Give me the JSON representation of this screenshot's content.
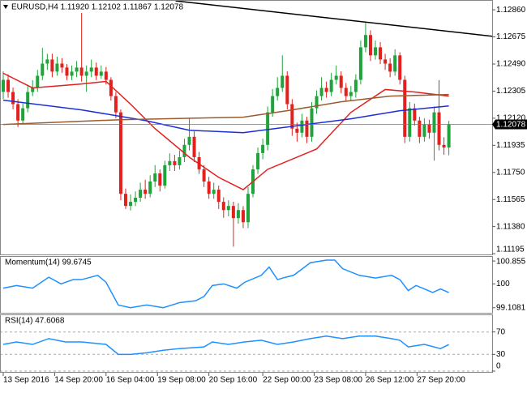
{
  "chart_data": {
    "type": "candlestick",
    "title": "EURUSD,H4  1.11920 1.12102 1.11867 1.12078",
    "open": [
      1.123,
      1.12382,
      1.12299,
      1.12216,
      1.12104,
      1.12188,
      1.12299,
      1.12327,
      1.1241,
      1.12493,
      1.12521,
      1.12438,
      1.12493,
      1.12466,
      1.1241,
      1.12438,
      1.12466,
      1.1241,
      1.12438,
      1.12466,
      1.1241,
      1.12438,
      1.12382,
      1.12271,
      1.1216,
      1.11604,
      1.11521,
      1.11549,
      1.11577,
      1.11632,
      1.11604,
      1.11688,
      1.11743,
      1.1166,
      1.11799,
      1.11827,
      1.11799,
      1.11854,
      1.11938,
      1.11993,
      1.11854,
      1.11771,
      1.11688,
      1.11604,
      1.11632,
      1.11549,
      1.11493,
      1.11521,
      1.11438,
      1.11493,
      1.1141,
      1.11604,
      1.11771,
      1.11882,
      1.11938,
      1.1216,
      1.12271,
      1.12327,
      1.1241,
      1.12216,
      1.12049,
      1.12021,
      1.12104,
      1.11993,
      1.12188,
      1.12271,
      1.12327,
      1.12299,
      1.12382,
      1.1241,
      1.12327,
      1.12271,
      1.12299,
      1.12382,
      1.12604,
      1.12688,
      1.12549,
      1.12604,
      1.12521,
      1.12493,
      1.12438,
      1.12549,
      1.12382,
      1.11993,
      1.12188,
      1.12104,
      1.11993,
      1.12077,
      1.12021,
      1.1216,
      1.11938,
      1.1192
    ],
    "high": [
      1.1244,
      1.1242,
      1.1233,
      1.1225,
      1.1222,
      1.1234,
      1.1238,
      1.1245,
      1.126,
      1.1256,
      1.1256,
      1.1254,
      1.1253,
      1.1249,
      1.1248,
      1.1251,
      1.12838,
      1.1248,
      1.1252,
      1.125,
      1.1248,
      1.1247,
      1.124,
      1.123,
      1.1218,
      1.1164,
      1.116,
      1.1162,
      1.1168,
      1.117,
      1.1173,
      1.118,
      1.1177,
      1.1183,
      1.1188,
      1.1187,
      1.119,
      1.1198,
      1.1212,
      1.1203,
      1.1189,
      1.118,
      1.1172,
      1.1168,
      1.1166,
      1.1158,
      1.1156,
      1.1155,
      1.1154,
      1.1152,
      1.1165,
      1.118,
      1.1192,
      1.1198,
      1.122,
      1.1232,
      1.124,
      1.12549,
      1.1244,
      1.1225,
      1.1209,
      1.1215,
      1.1213,
      1.1223,
      1.1231,
      1.124,
      1.1237,
      1.1243,
      1.1248,
      1.1244,
      1.1236,
      1.1234,
      1.1242,
      1.1265,
      1.12771,
      1.1272,
      1.1265,
      1.1264,
      1.1256,
      1.1253,
      1.1259,
      1.1257,
      1.1241,
      1.1223,
      1.1222,
      1.1213,
      1.1212,
      1.1211,
      1.122,
      1.1238,
      1.1199,
      1.12102
    ],
    "low": [
      1.1225,
      1.1226,
      1.1218,
      1.1206,
      1.1208,
      1.1216,
      1.1227,
      1.123,
      1.1238,
      1.1245,
      1.124,
      1.1241,
      1.1243,
      1.1238,
      1.1238,
      1.124,
      1.1237,
      1.123,
      1.124,
      1.1238,
      1.1239,
      1.1235,
      1.1224,
      1.1212,
      1.1156,
      1.115,
      1.1149,
      1.1152,
      1.1155,
      1.1157,
      1.1158,
      1.1165,
      1.1162,
      1.1164,
      1.1176,
      1.1176,
      1.1177,
      1.1182,
      1.119,
      1.1182,
      1.1174,
      1.1165,
      1.1157,
      1.1157,
      1.115,
      1.1144,
      1.1145,
      1.11243,
      1.114,
      1.1137,
      1.1137,
      1.1158,
      1.1174,
      1.1184,
      1.119,
      1.1213,
      1.1224,
      1.123,
      1.1218,
      1.12,
      1.1196,
      1.1199,
      1.1195,
      1.1196,
      1.1215,
      1.1224,
      1.1226,
      1.1227,
      1.1235,
      1.1229,
      1.1224,
      1.1224,
      1.1226,
      1.1235,
      1.1257,
      1.1251,
      1.1252,
      1.1249,
      1.1245,
      1.124,
      1.1241,
      1.1235,
      1.1195,
      1.1196,
      1.1207,
      1.1195,
      1.1196,
      1.1198,
      1.1183,
      1.119,
      1.1187,
      1.11867
    ],
    "close": [
      1.12382,
      1.12299,
      1.12216,
      1.12104,
      1.12188,
      1.12299,
      1.12327,
      1.1241,
      1.12493,
      1.12521,
      1.12438,
      1.12493,
      1.12466,
      1.1241,
      1.12438,
      1.12466,
      1.1241,
      1.12438,
      1.12466,
      1.1241,
      1.12438,
      1.12382,
      1.12271,
      1.1216,
      1.11604,
      1.11521,
      1.11549,
      1.11577,
      1.11632,
      1.11604,
      1.11688,
      1.11743,
      1.1166,
      1.11799,
      1.11827,
      1.11799,
      1.11854,
      1.11938,
      1.11993,
      1.11854,
      1.11771,
      1.11688,
      1.11604,
      1.11632,
      1.11549,
      1.11493,
      1.11521,
      1.11438,
      1.11493,
      1.1141,
      1.11604,
      1.11771,
      1.11882,
      1.11938,
      1.1216,
      1.12271,
      1.12327,
      1.1241,
      1.12216,
      1.12049,
      1.12021,
      1.12104,
      1.11993,
      1.12188,
      1.12271,
      1.12327,
      1.12299,
      1.12382,
      1.1241,
      1.12327,
      1.12271,
      1.12299,
      1.12382,
      1.12604,
      1.12688,
      1.12549,
      1.12604,
      1.12521,
      1.12493,
      1.12438,
      1.12549,
      1.12382,
      1.11993,
      1.12188,
      1.12104,
      1.11993,
      1.12077,
      1.12021,
      1.1216,
      1.11938,
      1.1192,
      1.12078
    ],
    "bull_color": "#1fa33a",
    "bear_color": "#e3201e",
    "xlim": [
      -0.66,
      99.84
    ],
    "xticks": [
      {
        "value": 0,
        "label": "13 Sep 2016"
      },
      {
        "value": 10.5,
        "label": "14 Sep 20:00"
      },
      {
        "value": 21,
        "label": "16 Sep 04:00"
      },
      {
        "value": 31.5,
        "label": "19 Sep 08:00"
      },
      {
        "value": 42,
        "label": "20 Sep 16:00"
      },
      {
        "value": 53,
        "label": "22 Sep 00:00"
      },
      {
        "value": 63.5,
        "label": "23 Sep 08:00"
      },
      {
        "value": 74,
        "label": "26 Sep 12:00"
      },
      {
        "value": 84.5,
        "label": "27 Sep 20:00"
      }
    ],
    "ylim": [
      1.1119,
      1.12927
    ],
    "yticks": [
      {
        "value": 1.1286,
        "label": "1.12860"
      },
      1.12675,
      {
        "value": 1.1249,
        "label": "1.12490"
      },
      1.12305,
      {
        "value": 1.1212,
        "label": "1.12120"
      },
      1.11935,
      {
        "value": 1.1175,
        "label": "1.11750"
      },
      1.11565,
      {
        "value": 1.1138,
        "label": "1.11380"
      },
      1.11195
    ],
    "last_price_label": "1.12078",
    "overlays": [
      {
        "color": "#e3201e",
        "x": [
          0,
          6,
          16,
          21,
          26,
          31,
          38,
          44,
          49,
          54,
          64,
          71,
          78,
          84,
          91
        ],
        "values": [
          1.12427,
          1.12327,
          1.12354,
          1.12371,
          1.12216,
          1.12049,
          1.11854,
          1.11716,
          1.11632,
          1.11771,
          1.1191,
          1.1216,
          1.12316,
          1.12299,
          1.12271
        ]
      },
      {
        "color": "#1c2fd6",
        "x": [
          0,
          16,
          29,
          38,
          49,
          58,
          71,
          81,
          91
        ],
        "values": [
          1.12243,
          1.12177,
          1.12104,
          1.12038,
          1.12021,
          1.1206,
          1.12116,
          1.12171,
          1.12204
        ]
      },
      {
        "color": "#9a5b2e",
        "x": [
          0,
          24,
          49,
          58,
          69,
          79,
          91
        ],
        "values": [
          1.12077,
          1.1211,
          1.12127,
          1.12171,
          1.12232,
          1.12271,
          1.12282
        ]
      },
      {
        "color": "#000000",
        "x": [
          35.2,
          100.5
        ],
        "values": [
          1.12921,
          1.12677
        ]
      }
    ],
    "momentum": {
      "type": "line",
      "title": "Momentum(14) 99.6745",
      "color": "#1e90ff",
      "x": [
        0,
        2.7,
        6,
        9.3,
        11.8,
        14.3,
        16,
        19.3,
        21,
        23.5,
        26,
        29.3,
        32.7,
        36,
        39.3,
        41,
        42.7,
        45,
        47.7,
        49.3,
        52.7,
        54.3,
        56,
        57.7,
        59.3,
        62.7,
        66,
        67.7,
        69.3,
        72.7,
        76,
        79.3,
        81,
        82.7,
        84.3,
        86,
        87.7,
        89.3,
        91
      ],
      "values": [
        99.84,
        99.94,
        99.84,
        100.25,
        100,
        100.16,
        100.16,
        100.32,
        100.06,
        99.21,
        99.11,
        99.21,
        99.11,
        99.3,
        99.37,
        99.53,
        99.94,
        100,
        99.84,
        100.06,
        100.32,
        100.63,
        100.16,
        100.25,
        100.32,
        100.79,
        100.89,
        100.89,
        100.57,
        100.32,
        100.22,
        100.32,
        100.16,
        99.75,
        99.94,
        99.81,
        99.68,
        99.81,
        99.6745
      ],
      "ylim": [
        98.92,
        101.01
      ],
      "yticks": [
        100.855,
        100,
        99.1081
      ],
      "grid": false
    },
    "rsi": {
      "type": "line",
      "title": "RSI(14) 47.6068",
      "color": "#1e90ff",
      "x": [
        0,
        2.7,
        6,
        9.3,
        12.7,
        16,
        21,
        23.5,
        26,
        29.3,
        32.7,
        36,
        41,
        42.7,
        46,
        49.3,
        52.7,
        56,
        59.3,
        62.7,
        66,
        69.3,
        72.7,
        76,
        79.3,
        81,
        82.7,
        86,
        89.3,
        91
      ],
      "values": [
        47.8,
        52.2,
        47.8,
        58.2,
        52.2,
        52.2,
        47.8,
        29.9,
        29.9,
        32.8,
        37.3,
        40.3,
        43.3,
        52.2,
        47.8,
        52.2,
        55.2,
        47.8,
        52.2,
        58.2,
        62.7,
        58.2,
        62.7,
        62.7,
        58.2,
        55.2,
        43.3,
        47.8,
        40.3,
        47.6068
      ],
      "ylim": [
        0,
        100
      ],
      "yticks": [
        70,
        30,
        0
      ],
      "grid": true
    }
  }
}
